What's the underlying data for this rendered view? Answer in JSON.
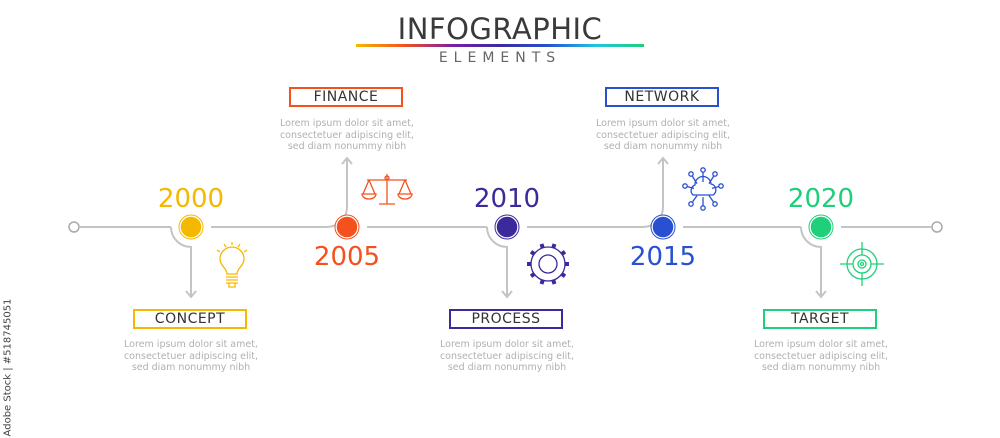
{
  "header": {
    "title": "INFOGRAPHIC",
    "subtitle": "ELEMENTS"
  },
  "watermark": "Adobe Stock | #518745051",
  "stages": [
    {
      "year": "2000",
      "label": "CONCEPT",
      "color": "#f5b800",
      "icon": "lightbulb-icon",
      "branch": "down",
      "desc": [
        "Lorem ipsum dolor sit amet,",
        "consectetuer adipiscing elit,",
        "sed diam nonummy nibh"
      ]
    },
    {
      "year": "2005",
      "label": "FINANCE",
      "color": "#f4511e",
      "icon": "scales-icon",
      "branch": "up",
      "desc": [
        "Lorem ipsum dolor sit amet,",
        "consectetuer adipiscing elit,",
        "sed diam nonummy nibh"
      ]
    },
    {
      "year": "2010",
      "label": "PROCESS",
      "color": "#3b2a9c",
      "icon": "gear-icon",
      "branch": "down",
      "desc": [
        "Lorem ipsum dolor sit amet,",
        "consectetuer adipiscing elit,",
        "sed diam nonummy nibh"
      ]
    },
    {
      "year": "2015",
      "label": "NETWORK",
      "color": "#2850d0",
      "icon": "cloud-network-icon",
      "branch": "up",
      "desc": [
        "Lorem ipsum dolor sit amet,",
        "consectetuer adipiscing elit,",
        "sed diam nonummy nibh"
      ]
    },
    {
      "year": "2020",
      "label": "TARGET",
      "color": "#1fcf7a",
      "icon": "target-icon",
      "branch": "down",
      "desc": [
        "Lorem ipsum dolor sit amet,",
        "consectetuer adipiscing elit,",
        "sed diam nonummy nibh"
      ]
    }
  ]
}
